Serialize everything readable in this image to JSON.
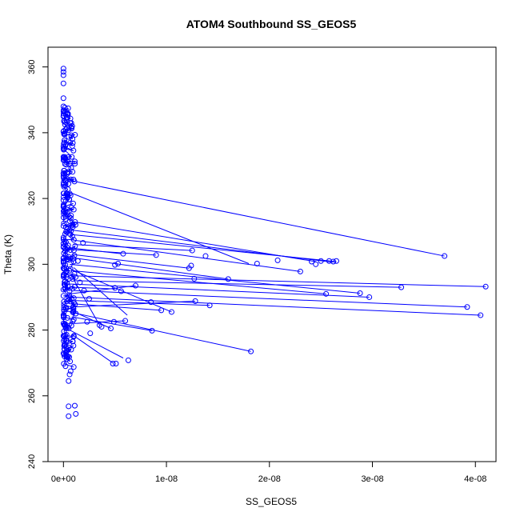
{
  "chart_data": {
    "type": "scatter",
    "title": "ATOM4 Southbound SS_GEOS5",
    "xlabel": "SS_GEOS5",
    "ylabel": "Theta (K)",
    "xlim": [
      -1.5e-09,
      4.2e-08
    ],
    "ylim": [
      240,
      366
    ],
    "x_ticks": [
      0,
      1e-08,
      2e-08,
      3e-08,
      4e-08
    ],
    "x_tick_labels": [
      "0e+00",
      "1e-08",
      "2e-08",
      "3e-08",
      "4e-08"
    ],
    "y_ticks": [
      240,
      260,
      280,
      300,
      320,
      340,
      360
    ],
    "y_tick_labels": [
      "240",
      "260",
      "280",
      "300",
      "320",
      "340",
      "360"
    ],
    "grid": false,
    "series_color": "#0000ff",
    "segments": [
      {
        "x0": 6e-10,
        "y0": 325.5,
        "x1": 3.7e-08,
        "y1": 302.5
      },
      {
        "x0": 5e-10,
        "y0": 322.0,
        "x1": 1.8e-08,
        "y1": 300.2
      },
      {
        "x0": 8e-10,
        "y0": 313.0,
        "x1": 2.45e-08,
        "y1": 300.8
      },
      {
        "x0": 5e-10,
        "y0": 310.5,
        "x1": 2.62e-08,
        "y1": 300.6
      },
      {
        "x0": 9e-10,
        "y0": 309.0,
        "x1": 2.65e-08,
        "y1": 300.8
      },
      {
        "x0": 6e-10,
        "y0": 307.5,
        "x1": 2.3e-08,
        "y1": 297.8
      },
      {
        "x0": 1e-09,
        "y0": 306.0,
        "x1": 1.25e-08,
        "y1": 304.2
      },
      {
        "x0": 7e-10,
        "y0": 304.5,
        "x1": 9e-09,
        "y1": 302.8
      },
      {
        "x0": 8e-10,
        "y0": 302.0,
        "x1": 1.6e-08,
        "y1": 295.5
      },
      {
        "x0": 6e-10,
        "y0": 300.0,
        "x1": 2.88e-08,
        "y1": 291.2
      },
      {
        "x0": 9e-10,
        "y0": 298.0,
        "x1": 2.55e-08,
        "y1": 291.0
      },
      {
        "x0": 7e-10,
        "y0": 296.5,
        "x1": 4.1e-08,
        "y1": 293.2
      },
      {
        "x0": 1.1e-09,
        "y0": 295.0,
        "x1": 3.28e-08,
        "y1": 293.0
      },
      {
        "x0": 6e-10,
        "y0": 294.0,
        "x1": 2.97e-08,
        "y1": 290.0
      },
      {
        "x0": 1e-09,
        "y0": 292.0,
        "x1": 3.92e-08,
        "y1": 287.0
      },
      {
        "x0": 8e-10,
        "y0": 290.0,
        "x1": 4.05e-08,
        "y1": 284.5
      },
      {
        "x0": 7e-10,
        "y0": 289.0,
        "x1": 1.42e-08,
        "y1": 287.5
      },
      {
        "x0": 9e-10,
        "y0": 287.0,
        "x1": 1.28e-08,
        "y1": 288.8
      },
      {
        "x0": 6e-10,
        "y0": 285.5,
        "x1": 1.82e-08,
        "y1": 273.5
      },
      {
        "x0": 8e-10,
        "y0": 284.0,
        "x1": 8.6e-09,
        "y1": 279.8
      },
      {
        "x0": 1e-09,
        "y0": 282.0,
        "x1": 6e-09,
        "y1": 282.8
      },
      {
        "x0": 6e-10,
        "y0": 280.0,
        "x1": 5.8e-09,
        "y1": 271.5
      },
      {
        "x0": 9e-10,
        "y0": 278.5,
        "x1": 4.8e-09,
        "y1": 270.0
      },
      {
        "x0": 7e-10,
        "y0": 298.5,
        "x1": 1.05e-08,
        "y1": 285.5
      },
      {
        "x0": 8e-10,
        "y0": 303.0,
        "x1": 1.22e-08,
        "y1": 298.8
      },
      {
        "x0": 6e-10,
        "y0": 305.0,
        "x1": 5.6e-09,
        "y1": 303.2
      },
      {
        "x0": 1e-09,
        "y0": 299.0,
        "x1": 6.2e-09,
        "y1": 284.5
      },
      {
        "x0": 7e-10,
        "y0": 297.0,
        "x1": 3.5e-09,
        "y1": 281.5
      },
      {
        "x0": 9e-10,
        "y0": 293.0,
        "x1": 5e-09,
        "y1": 292.5
      },
      {
        "x0": 6e-10,
        "y0": 291.0,
        "x1": 7e-09,
        "y1": 293.5
      },
      {
        "x0": 8e-10,
        "y0": 288.0,
        "x1": 9.5e-09,
        "y1": 286.0
      },
      {
        "x0": 7e-10,
        "y0": 286.0,
        "x1": 4.6e-09,
        "y1": 280.5
      }
    ],
    "points": [
      {
        "x": 3.7e-08,
        "y": 302.5
      },
      {
        "x": 4.1e-08,
        "y": 293.2
      },
      {
        "x": 4.05e-08,
        "y": 284.5
      },
      {
        "x": 3.92e-08,
        "y": 287.0
      },
      {
        "x": 3.28e-08,
        "y": 293.0
      },
      {
        "x": 2.97e-08,
        "y": 290.0
      },
      {
        "x": 2.88e-08,
        "y": 291.2
      },
      {
        "x": 2.65e-08,
        "y": 301.0
      },
      {
        "x": 2.62e-08,
        "y": 300.8
      },
      {
        "x": 2.58e-08,
        "y": 301.0
      },
      {
        "x": 2.55e-08,
        "y": 291.0
      },
      {
        "x": 2.5e-08,
        "y": 301.0
      },
      {
        "x": 2.45e-08,
        "y": 300.0
      },
      {
        "x": 2.41e-08,
        "y": 300.8
      },
      {
        "x": 2.3e-08,
        "y": 297.8
      },
      {
        "x": 2.08e-08,
        "y": 301.2
      },
      {
        "x": 1.88e-08,
        "y": 300.2
      },
      {
        "x": 1.82e-08,
        "y": 273.5
      },
      {
        "x": 1.6e-08,
        "y": 295.5
      },
      {
        "x": 1.42e-08,
        "y": 287.5
      },
      {
        "x": 1.38e-08,
        "y": 302.5
      },
      {
        "x": 1.28e-08,
        "y": 288.8
      },
      {
        "x": 1.27e-08,
        "y": 295.6
      },
      {
        "x": 1.25e-08,
        "y": 304.2
      },
      {
        "x": 1.24e-08,
        "y": 299.6
      },
      {
        "x": 1.22e-08,
        "y": 298.8
      },
      {
        "x": 1.05e-08,
        "y": 285.5
      },
      {
        "x": 9.5e-09,
        "y": 286.0
      },
      {
        "x": 9e-09,
        "y": 302.8
      },
      {
        "x": 8.6e-09,
        "y": 279.8
      },
      {
        "x": 8.5e-09,
        "y": 288.5
      },
      {
        "x": 7e-09,
        "y": 293.5
      },
      {
        "x": 6.3e-09,
        "y": 270.8
      },
      {
        "x": 6e-09,
        "y": 282.8
      },
      {
        "x": 5.8e-09,
        "y": 303.2
      },
      {
        "x": 5.6e-09,
        "y": 291.8
      },
      {
        "x": 5.3e-09,
        "y": 300.2
      },
      {
        "x": 5e-09,
        "y": 299.8
      },
      {
        "x": 5e-09,
        "y": 292.8
      },
      {
        "x": 4.9e-09,
        "y": 282.5
      },
      {
        "x": 4.8e-09,
        "y": 269.8
      },
      {
        "x": 5.1e-09,
        "y": 269.8
      },
      {
        "x": 4.6e-09,
        "y": 280.5
      },
      {
        "x": 3.7e-09,
        "y": 281.0
      },
      {
        "x": 3.5e-09,
        "y": 281.5
      },
      {
        "x": 2.6e-09,
        "y": 279.0
      },
      {
        "x": 2.5e-09,
        "y": 289.5
      },
      {
        "x": 2.3e-09,
        "y": 282.5
      },
      {
        "x": 2e-09,
        "y": 292.0
      },
      {
        "x": 1.9e-09,
        "y": 306.5
      },
      {
        "x": 1.6e-09,
        "y": 294.5
      },
      {
        "x": 1.4e-09,
        "y": 301.0
      },
      {
        "x": 1.2e-09,
        "y": 285.0
      },
      {
        "x": 1.1e-09,
        "y": 257.0
      },
      {
        "x": 1.2e-09,
        "y": 254.5
      },
      {
        "x": 1e-09,
        "y": 278.0
      },
      {
        "x": 9e-10,
        "y": 276.5
      },
      {
        "x": 8e-10,
        "y": 289.5
      },
      {
        "x": 7e-10,
        "y": 267.5
      },
      {
        "x": 6e-10,
        "y": 266.5
      },
      {
        "x": 5e-10,
        "y": 264.5
      },
      {
        "x": 5e-10,
        "y": 256.8
      },
      {
        "x": 5e-10,
        "y": 253.8
      },
      {
        "x": 4e-10,
        "y": 272.0
      },
      {
        "x": 3e-10,
        "y": 273.5
      },
      {
        "x": 2e-10,
        "y": 269.0
      },
      {
        "x": 1e-10,
        "y": 272.0
      },
      {
        "x": 2e-10,
        "y": 275.5
      },
      {
        "x": 0.0,
        "y": 359.5
      },
      {
        "x": 0.0,
        "y": 358.5
      },
      {
        "x": 0.0,
        "y": 357.5
      },
      {
        "x": 0.0,
        "y": 355.0
      },
      {
        "x": 0.0,
        "y": 350.5
      },
      {
        "x": 0.0,
        "y": 348.0
      },
      {
        "x": 0.0,
        "y": 345.0
      }
    ],
    "dense_band": {
      "x_min": 0.0,
      "x_max": 1.2e-09,
      "y_min": 270,
      "y_max": 348
    }
  }
}
